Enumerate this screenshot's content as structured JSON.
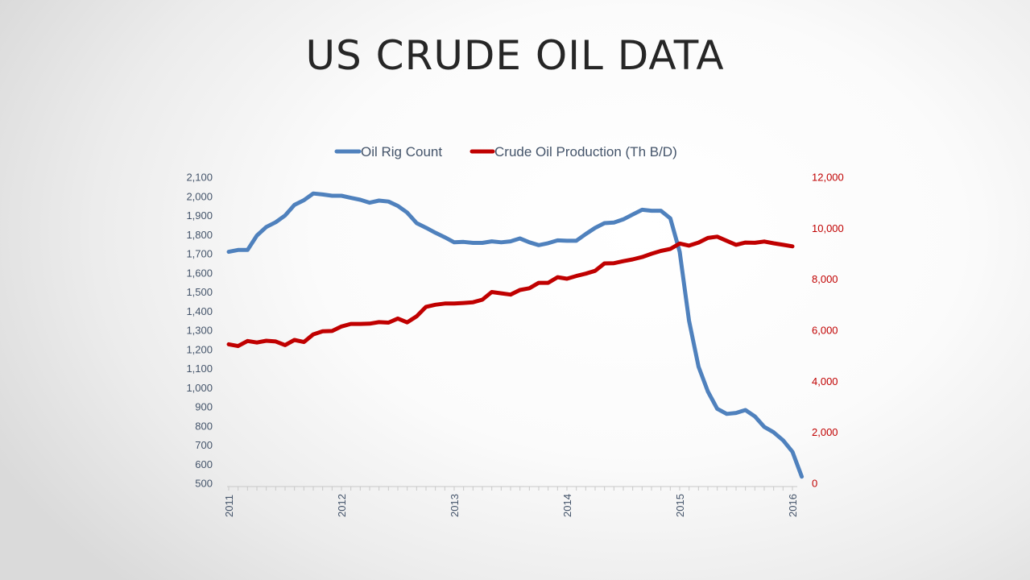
{
  "slide": {
    "title": "US CRUDE OIL DATA"
  },
  "chart_data": {
    "type": "line",
    "title": "",
    "legend_position": "top",
    "grid": false,
    "x_tick_labels": [
      "2011",
      "2012",
      "2013",
      "2014",
      "2015",
      "2016"
    ],
    "x_range": [
      2011.0,
      2016.1
    ],
    "y_left": {
      "range": [
        500,
        2100
      ],
      "tick_labels": [
        "2,100",
        "2,000",
        "1,900",
        "1,800",
        "1,700",
        "1,600",
        "1,500",
        "1,400",
        "1,300",
        "1,200",
        "1,100",
        "1,000",
        "900",
        "800",
        "700",
        "600",
        "500"
      ]
    },
    "y_right": {
      "range": [
        0,
        12000
      ],
      "tick_labels": [
        "12,000",
        "10,000",
        "8,000",
        "6,000",
        "4,000",
        "2,000",
        "0"
      ]
    },
    "series": [
      {
        "name": "Oil Rig Count",
        "axis": "left",
        "color": "#4f81bd",
        "x": [
          2011.0,
          2011.083,
          2011.167,
          2011.25,
          2011.333,
          2011.417,
          2011.5,
          2011.583,
          2011.667,
          2011.75,
          2011.833,
          2011.917,
          2012.0,
          2012.083,
          2012.167,
          2012.25,
          2012.333,
          2012.417,
          2012.5,
          2012.583,
          2012.667,
          2012.75,
          2012.833,
          2012.917,
          2013.0,
          2013.083,
          2013.167,
          2013.25,
          2013.333,
          2013.417,
          2013.5,
          2013.583,
          2013.667,
          2013.75,
          2013.833,
          2013.917,
          2014.0,
          2014.083,
          2014.167,
          2014.25,
          2014.333,
          2014.417,
          2014.5,
          2014.583,
          2014.667,
          2014.75,
          2014.833,
          2014.917,
          2015.0,
          2015.083,
          2015.167,
          2015.25,
          2015.333,
          2015.417,
          2015.5,
          2015.583,
          2015.667,
          2015.75,
          2015.833,
          2015.917,
          2016.0,
          2016.083
        ],
        "values": [
          1710,
          1720,
          1720,
          1795,
          1840,
          1865,
          1900,
          1955,
          1980,
          2015,
          2010,
          2003,
          2003,
          1992,
          1982,
          1967,
          1978,
          1973,
          1950,
          1915,
          1860,
          1836,
          1810,
          1786,
          1760,
          1762,
          1757,
          1757,
          1765,
          1760,
          1765,
          1780,
          1760,
          1745,
          1755,
          1770,
          1768,
          1768,
          1803,
          1835,
          1860,
          1863,
          1880,
          1905,
          1930,
          1925,
          1925,
          1885,
          1710,
          1350,
          1110,
          980,
          890,
          863,
          868,
          883,
          850,
          795,
          767,
          725,
          665,
          535
        ]
      },
      {
        "name": "Crude Oil Production (Th B/D)",
        "axis": "right",
        "color": "#c00000",
        "x": [
          2011.0,
          2011.083,
          2011.167,
          2011.25,
          2011.333,
          2011.417,
          2011.5,
          2011.583,
          2011.667,
          2011.75,
          2011.833,
          2011.917,
          2012.0,
          2012.083,
          2012.167,
          2012.25,
          2012.333,
          2012.417,
          2012.5,
          2012.583,
          2012.667,
          2012.75,
          2012.833,
          2012.917,
          2013.0,
          2013.083,
          2013.167,
          2013.25,
          2013.333,
          2013.417,
          2013.5,
          2013.583,
          2013.667,
          2013.75,
          2013.833,
          2013.917,
          2014.0,
          2014.083,
          2014.167,
          2014.25,
          2014.333,
          2014.417,
          2014.5,
          2014.583,
          2014.667,
          2014.75,
          2014.833,
          2014.917,
          2015.0,
          2015.083,
          2015.167,
          2015.25,
          2015.333,
          2015.417,
          2015.5,
          2015.583,
          2015.667,
          2015.75,
          2015.833,
          2015.917,
          2016.0
        ],
        "values": [
          5450,
          5380,
          5580,
          5520,
          5590,
          5560,
          5420,
          5620,
          5540,
          5840,
          5960,
          5970,
          6150,
          6250,
          6250,
          6260,
          6320,
          6300,
          6460,
          6310,
          6550,
          6920,
          7000,
          7050,
          7050,
          7070,
          7100,
          7200,
          7500,
          7450,
          7400,
          7580,
          7650,
          7860,
          7860,
          8080,
          8020,
          8130,
          8220,
          8330,
          8620,
          8630,
          8710,
          8780,
          8870,
          9000,
          9110,
          9190,
          9400,
          9320,
          9440,
          9620,
          9670,
          9510,
          9350,
          9440,
          9430,
          9480,
          9410,
          9350,
          9290
        ]
      }
    ]
  }
}
